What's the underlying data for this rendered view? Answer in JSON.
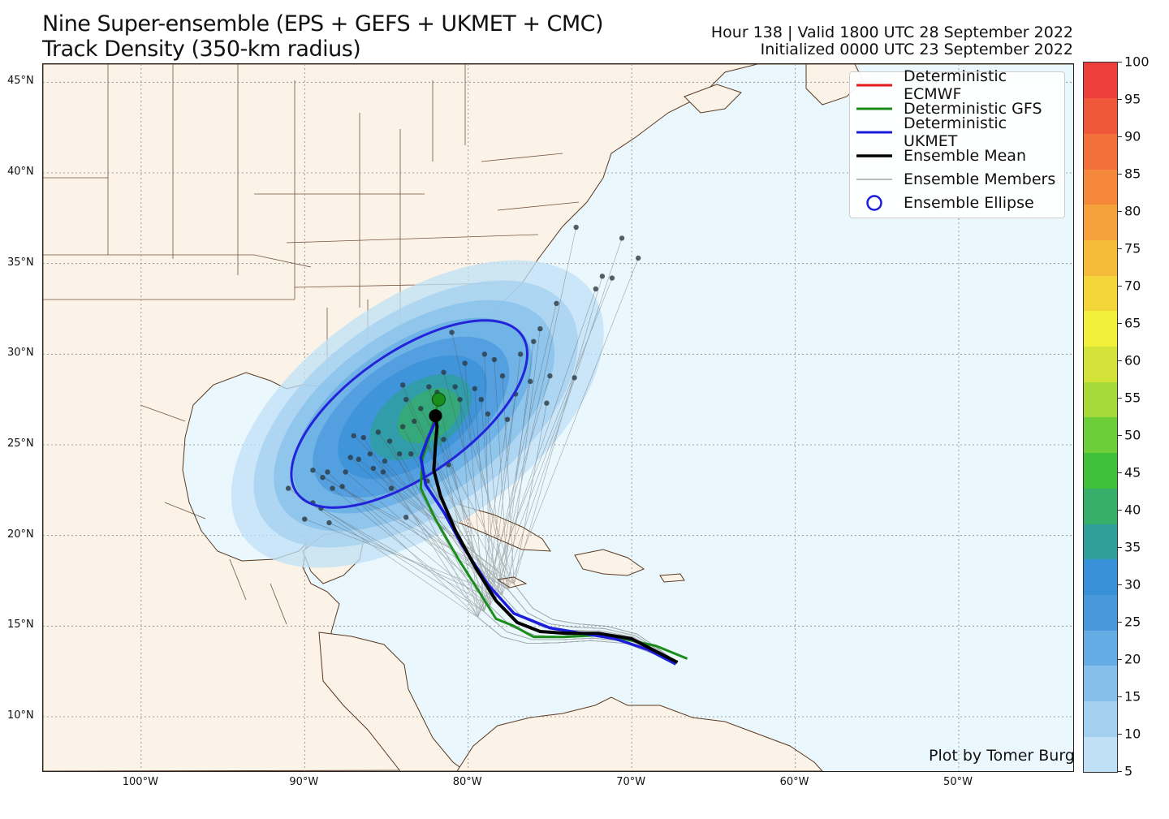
{
  "title": {
    "line1": "Nine Super-ensemble (EPS + GEFS + UKMET + CMC)",
    "line2": "Track Density (350-km radius)"
  },
  "meta": {
    "valid": "Hour 138 | Valid 1800 UTC 28 September 2022",
    "initialized": "Initialized 0000 UTC 23 September 2022"
  },
  "map": {
    "extent": {
      "lon_min": -106,
      "lon_max": -43,
      "lat_min": 7.0,
      "lat_max": 46.0
    },
    "ocean_color": "#eaf8fd",
    "land_color": "#fbf3e7",
    "border_color": "#5a3820"
  },
  "axes": {
    "lat_ticks": [
      {
        "value": 45,
        "label": "45°N"
      },
      {
        "value": 40,
        "label": "40°N"
      },
      {
        "value": 35,
        "label": "35°N"
      },
      {
        "value": 30,
        "label": "30°N"
      },
      {
        "value": 25,
        "label": "25°N"
      },
      {
        "value": 20,
        "label": "20°N"
      },
      {
        "value": 15,
        "label": "15°N"
      },
      {
        "value": 10,
        "label": "10°N"
      }
    ],
    "lon_ticks": [
      {
        "value": -100,
        "label": "100°W"
      },
      {
        "value": -90,
        "label": "90°W"
      },
      {
        "value": -80,
        "label": "80°W"
      },
      {
        "value": -70,
        "label": "70°W"
      },
      {
        "value": -60,
        "label": "60°W"
      },
      {
        "value": -50,
        "label": "50°W"
      }
    ]
  },
  "legend": {
    "items": [
      {
        "label": "Deterministic ECMWF",
        "kind": "line",
        "color": "#e31a1c",
        "width": 3
      },
      {
        "label": "Deterministic GFS",
        "kind": "line",
        "color": "#1a8c1a",
        "width": 3
      },
      {
        "label": "Deterministic UKMET",
        "kind": "line",
        "color": "#1c1cdd",
        "width": 3
      },
      {
        "label": "Ensemble Mean",
        "kind": "line",
        "color": "#000000",
        "width": 3.5
      },
      {
        "label": "Ensemble Members",
        "kind": "line",
        "color": "#777777",
        "width": 1
      },
      {
        "label": "Ensemble Ellipse",
        "kind": "circle",
        "color": "#1c1cdd",
        "width": 2.5
      }
    ]
  },
  "credit": "Plot by Tomer Burg",
  "colorbar": {
    "ticks": [
      "5",
      "10",
      "15",
      "20",
      "25",
      "30",
      "35",
      "40",
      "45",
      "50",
      "55",
      "60",
      "65",
      "70",
      "75",
      "80",
      "85",
      "90",
      "95",
      "100"
    ],
    "colors": [
      "#bfe0f5",
      "#a4d0f0",
      "#86bfea",
      "#66acE4",
      "#4a98dc",
      "#3890d8",
      "#2e9f9a",
      "#37ae6a",
      "#3fbf3a",
      "#6ccf3a",
      "#a5d93a",
      "#d4e33a",
      "#f2ef3a",
      "#f5d63a",
      "#f5bb3a",
      "#f5a03a",
      "#f5883a",
      "#f3703a",
      "#f0583a",
      "#ec3e3a"
    ]
  },
  "chart_data": {
    "type": "map",
    "ensemble_mean": [
      [
        -67.2,
        13.0
      ],
      [
        -68.5,
        13.6
      ],
      [
        -70.0,
        14.3
      ],
      [
        -72.0,
        14.6
      ],
      [
        -74.0,
        14.6
      ],
      [
        -75.6,
        14.7
      ],
      [
        -77.0,
        15.2
      ],
      [
        -78.3,
        16.4
      ],
      [
        -79.6,
        18.3
      ],
      [
        -80.8,
        20.3
      ],
      [
        -81.7,
        22.2
      ],
      [
        -82.1,
        23.6
      ],
      [
        -82.0,
        25.0
      ],
      [
        -81.9,
        26.0
      ],
      [
        -82.0,
        26.6
      ]
    ],
    "gfs": [
      [
        -66.6,
        13.2
      ],
      [
        -68.5,
        13.9
      ],
      [
        -70.5,
        14.3
      ],
      [
        -72.0,
        14.5
      ],
      [
        -74.2,
        14.4
      ],
      [
        -76.0,
        14.4
      ],
      [
        -77.2,
        15.0
      ],
      [
        -78.3,
        15.4
      ],
      [
        -79.4,
        17.0
      ],
      [
        -80.6,
        18.7
      ],
      [
        -82.0,
        20.9
      ],
      [
        -82.9,
        22.6
      ],
      [
        -82.8,
        24.2
      ],
      [
        -82.3,
        25.7
      ],
      [
        -81.8,
        27.5
      ]
    ],
    "ukmet": [
      [
        -67.3,
        12.9
      ],
      [
        -69.0,
        13.7
      ],
      [
        -71.0,
        14.3
      ],
      [
        -73.0,
        14.6
      ],
      [
        -75.0,
        14.9
      ],
      [
        -77.2,
        15.7
      ],
      [
        -78.8,
        17.3
      ],
      [
        -80.4,
        19.5
      ],
      [
        -81.5,
        21.3
      ],
      [
        -82.6,
        22.8
      ],
      [
        -82.9,
        24.3
      ],
      [
        -82.5,
        25.3
      ],
      [
        -81.9,
        26.5
      ]
    ],
    "gfs_marker": {
      "lon": -81.8,
      "lat": 27.5
    },
    "mean_marker": {
      "lon": -82.0,
      "lat": 26.6
    },
    "ellipse": {
      "center_lon": -83.6,
      "center_lat": 26.7,
      "semi_major_deg": 8.4,
      "semi_minor_deg": 3.4,
      "rotation_deg": 35
    },
    "member_endpoints": [
      [
        -91,
        22.6
      ],
      [
        -89.5,
        21.8
      ],
      [
        -89,
        21.5
      ],
      [
        -88.5,
        20.7
      ],
      [
        -90,
        20.9
      ],
      [
        -89.5,
        23.6
      ],
      [
        -88.9,
        23.2
      ],
      [
        -88.6,
        23.5
      ],
      [
        -88.3,
        22.6
      ],
      [
        -87.7,
        22.7
      ],
      [
        -87.5,
        23.5
      ],
      [
        -87.2,
        24.3
      ],
      [
        -87,
        25.5
      ],
      [
        -86.7,
        24.2
      ],
      [
        -86.4,
        25.4
      ],
      [
        -86,
        24.5
      ],
      [
        -85.8,
        23.7
      ],
      [
        -85.5,
        25.7
      ],
      [
        -85.1,
        24.1
      ],
      [
        -85.2,
        23.5
      ],
      [
        -84.7,
        22.6
      ],
      [
        -84.8,
        25.2
      ],
      [
        -84.2,
        24.5
      ],
      [
        -84,
        26.0
      ],
      [
        -83.8,
        27.5
      ],
      [
        -83.5,
        24.5
      ],
      [
        -83.3,
        26.3
      ],
      [
        -82.9,
        27.0
      ],
      [
        -82.4,
        28.2
      ],
      [
        -81.9,
        27.9
      ],
      [
        -81.5,
        25.3
      ],
      [
        -81.2,
        23.9
      ],
      [
        -81.5,
        29.0
      ],
      [
        -81,
        31.2
      ],
      [
        -80.8,
        28.2
      ],
      [
        -80.5,
        27.5
      ],
      [
        -80.2,
        29.5
      ],
      [
        -79.6,
        28.1
      ],
      [
        -79.2,
        27.5
      ],
      [
        -78.8,
        26.7
      ],
      [
        -78.4,
        29.7
      ],
      [
        -77.9,
        28.8
      ],
      [
        -77.6,
        26.4
      ],
      [
        -77.1,
        27.8
      ],
      [
        -76.8,
        30.0
      ],
      [
        -76.2,
        28.5
      ],
      [
        -76.0,
        30.7
      ],
      [
        -75.6,
        31.4
      ],
      [
        -75.2,
        27.3
      ],
      [
        -75.0,
        28.8
      ],
      [
        -74.6,
        32.8
      ],
      [
        -73.5,
        28.7
      ],
      [
        -73.4,
        37.0
      ],
      [
        -70.6,
        36.4
      ],
      [
        -69.6,
        35.3
      ],
      [
        -71.8,
        34.3
      ],
      [
        -71.2,
        34.2
      ],
      [
        -72.2,
        33.6
      ],
      [
        -79,
        30
      ],
      [
        -84,
        28.3
      ],
      [
        -82.5,
        23.0
      ],
      [
        -83.8,
        21.0
      ]
    ],
    "colorbar_range": [
      5,
      100
    ]
  }
}
